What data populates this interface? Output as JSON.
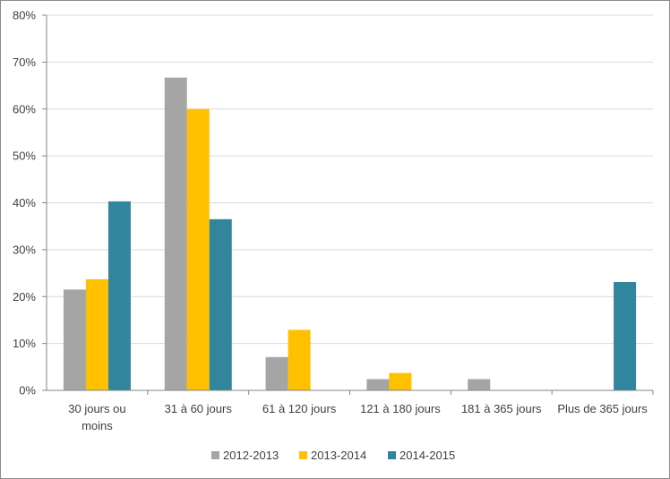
{
  "chart_data": {
    "type": "bar",
    "title": "",
    "xlabel": "",
    "ylabel": "",
    "ylim": [
      0,
      80
    ],
    "y_ticks": [
      0,
      10,
      20,
      30,
      40,
      50,
      60,
      70,
      80
    ],
    "y_tick_labels": [
      "0%",
      "10%",
      "20%",
      "30%",
      "40%",
      "50%",
      "60%",
      "70%",
      "80%"
    ],
    "y_unit": "%",
    "grid": true,
    "legend_position": "bottom",
    "categories": [
      [
        "30 jours ou",
        "moins"
      ],
      [
        "31 à 60 jours"
      ],
      [
        "61 à 120 jours"
      ],
      [
        "121 à 180 jours"
      ],
      [
        "181 à 365 jours"
      ],
      [
        "Plus de 365 jours"
      ]
    ],
    "series": [
      {
        "name": "2012-2013",
        "color": "#A5A5A5",
        "values": [
          21.5,
          66.7,
          7.1,
          2.4,
          2.4,
          0
        ]
      },
      {
        "name": "2013-2014",
        "color": "#FFC000",
        "values": [
          23.7,
          60.0,
          12.9,
          3.7,
          0,
          0
        ]
      },
      {
        "name": "2014-2015",
        "color": "#31859C",
        "values": [
          40.3,
          36.5,
          0,
          0,
          0,
          23.1
        ]
      }
    ]
  }
}
